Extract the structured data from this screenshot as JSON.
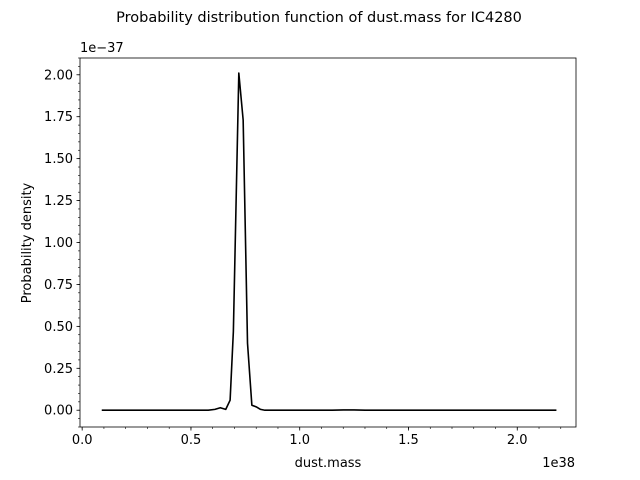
{
  "chart_data": {
    "type": "line",
    "title": "Probability distribution function of dust.mass for IC4280",
    "xlabel": "dust.mass",
    "ylabel": "Probability density",
    "x_offset_label": "1e38",
    "y_offset_label": "1e−37",
    "xlim": [
      -0.01,
      2.27
    ],
    "ylim": [
      -0.1,
      2.1
    ],
    "x_ticks": [
      0.0,
      0.5,
      1.0,
      1.5,
      2.0
    ],
    "x_tick_labels": [
      "0.0",
      "0.5",
      "1.0",
      "1.5",
      "2.0"
    ],
    "y_ticks": [
      0.0,
      0.25,
      0.5,
      0.75,
      1.0,
      1.25,
      1.5,
      1.75,
      2.0
    ],
    "y_tick_labels": [
      "0.00",
      "0.25",
      "0.50",
      "0.75",
      "1.00",
      "1.25",
      "1.50",
      "1.75",
      "2.00"
    ],
    "x_minor_step": 0.1,
    "y_minor_step": 0.05,
    "grid": false,
    "legend": "none",
    "series": [
      {
        "color": "#000000",
        "x": [
          0.09,
          0.55,
          0.58,
          0.61,
          0.635,
          0.66,
          0.68,
          0.695,
          0.72,
          0.74,
          0.76,
          0.78,
          0.8,
          0.82,
          0.84,
          0.88,
          1.0,
          1.15,
          1.2,
          1.25,
          1.3,
          1.5,
          1.8,
          2.18
        ],
        "y": [
          0.0,
          0.0,
          0.0,
          0.005,
          0.015,
          0.005,
          0.06,
          0.47,
          2.01,
          1.73,
          0.4,
          0.03,
          0.02,
          0.005,
          0.0,
          0.0,
          0.0,
          0.0,
          0.002,
          0.002,
          0.0,
          0.0,
          0.0,
          0.0
        ]
      }
    ]
  }
}
